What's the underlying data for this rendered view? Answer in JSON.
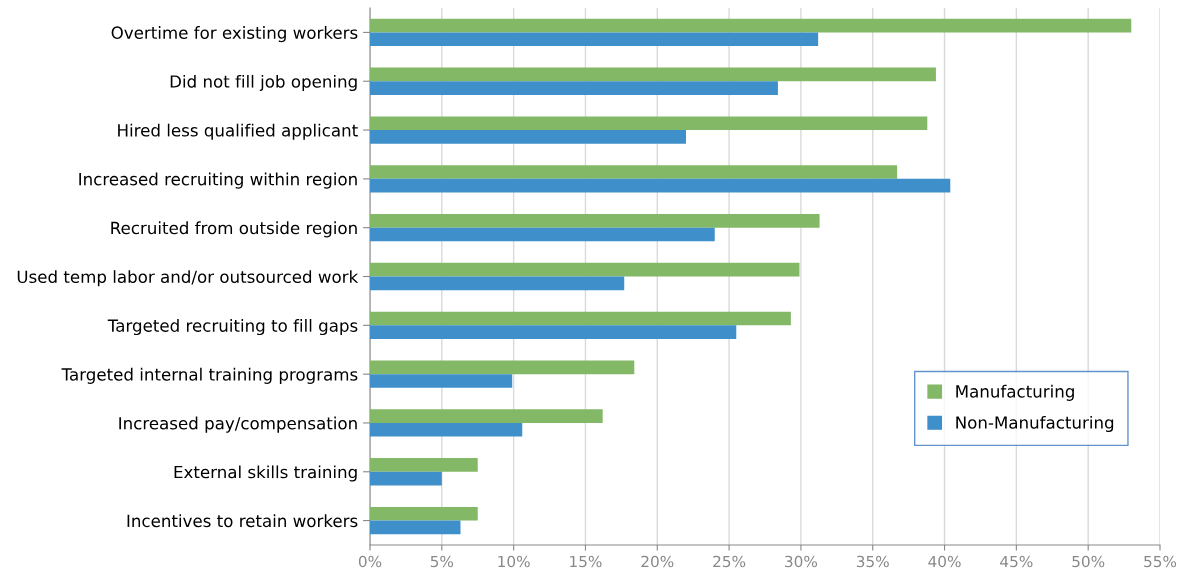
{
  "chart_data": {
    "type": "bar",
    "orientation": "horizontal",
    "categories": [
      "Overtime for existing workers",
      "Did not fill job opening",
      "Hired less qualified applicant",
      "Increased recruiting within region",
      "Recruited from outside region",
      "Used temp labor and/or outsourced work",
      "Targeted recruiting to fill gaps",
      "Targeted internal training programs",
      "Increased pay/compensation",
      "External skills training",
      "Incentives to retain workers"
    ],
    "series": [
      {
        "name": "Manufacturing",
        "color": "#82b866",
        "values": [
          53.0,
          39.4,
          38.8,
          36.7,
          31.3,
          29.9,
          29.3,
          18.4,
          16.2,
          7.5,
          7.5
        ]
      },
      {
        "name": "Non-Manufacturing",
        "color": "#3e8fca",
        "values": [
          31.2,
          28.4,
          22.0,
          40.4,
          24.0,
          17.7,
          25.5,
          9.9,
          10.6,
          5.0,
          6.3
        ]
      }
    ],
    "xlim": [
      0,
      55
    ],
    "xticks": [
      {
        "value": 0,
        "label": "0%"
      },
      {
        "value": 5,
        "label": "5%"
      },
      {
        "value": 10,
        "label": "10%"
      },
      {
        "value": 15,
        "label": "15%"
      },
      {
        "value": 20,
        "label": "20%"
      },
      {
        "value": 25,
        "label": "25%"
      },
      {
        "value": 30,
        "label": "30%"
      },
      {
        "value": 35,
        "label": "35%"
      },
      {
        "value": 40,
        "label": "40%"
      },
      {
        "value": 45,
        "label": "45%"
      },
      {
        "value": 50,
        "label": "50%"
      },
      {
        "value": 55,
        "label": "55%"
      }
    ],
    "grid": "x",
    "legend": "bottom right"
  }
}
